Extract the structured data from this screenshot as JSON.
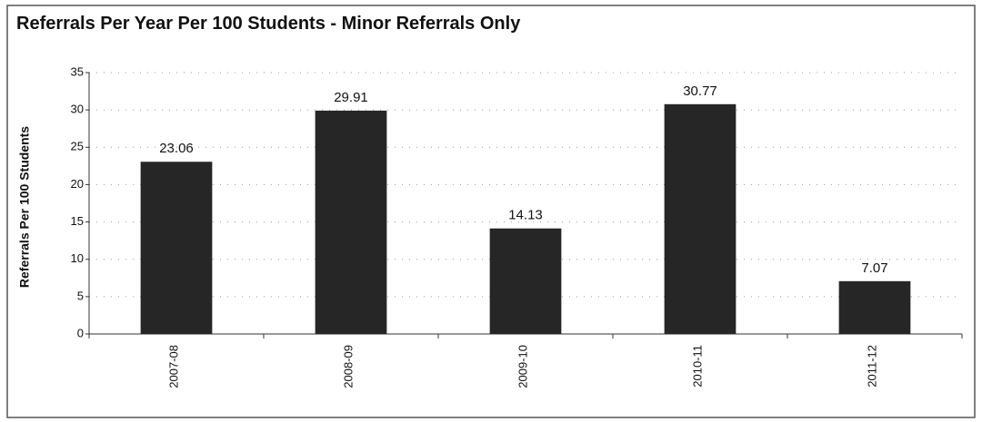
{
  "chart_data": {
    "type": "bar",
    "title": "Referrals Per Year Per 100 Students - Minor Referrals Only",
    "y_label": "Referrals Per 100 Students",
    "categories": [
      "2007-08",
      "2008-09",
      "2009-10",
      "2010-11",
      "2011-12"
    ],
    "values": [
      23.06,
      29.91,
      14.13,
      30.77,
      7.07
    ],
    "color": "#262626",
    "ylim": [
      0,
      35
    ],
    "yticks": [
      0,
      5,
      10,
      15,
      20,
      25,
      30,
      35
    ],
    "grid": true
  }
}
